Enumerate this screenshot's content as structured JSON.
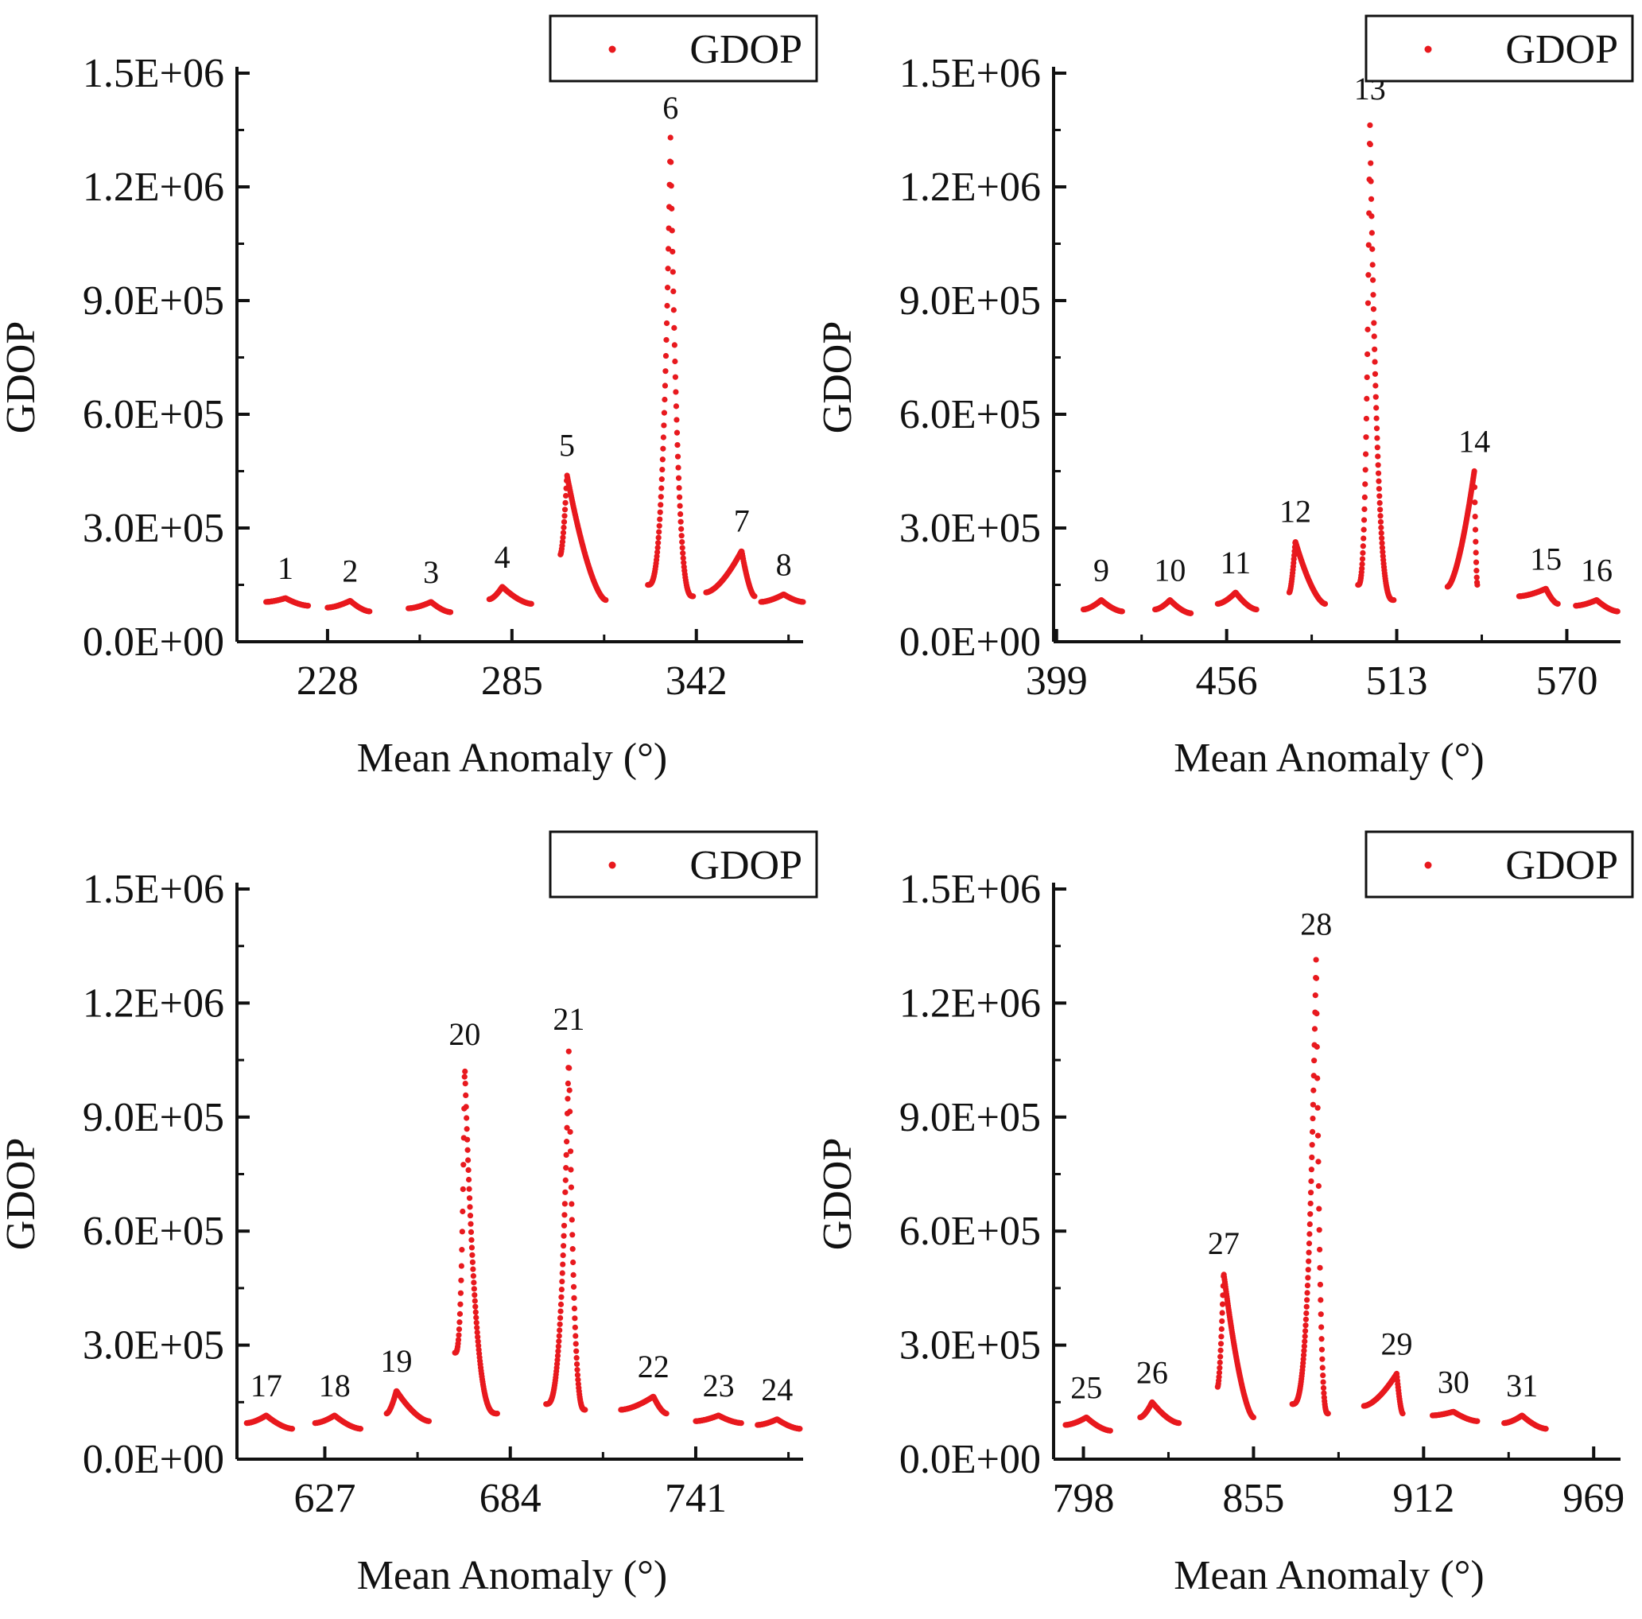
{
  "colors": {
    "series": "#e8191e",
    "axis": "#111111",
    "legend_border": "#111111",
    "background": "#ffffff"
  },
  "chart_data": [
    {
      "type": "scatter",
      "panel": "top-left",
      "xlabel": "Mean Anomaly (°)",
      "ylabel": "GDOP",
      "xlim": [
        200,
        375
      ],
      "ylim": [
        0,
        1500000
      ],
      "xticks": [
        228,
        285,
        342
      ],
      "xtick_labels": [
        "228",
        "285",
        "342"
      ],
      "yticks": [
        0,
        300000,
        600000,
        900000,
        1200000,
        1500000
      ],
      "ytick_labels": [
        "0.0E+00",
        "3.0E+05",
        "6.0E+05",
        "9.0E+05",
        "1.2E+06",
        "1.5E+06"
      ],
      "legend": {
        "label": "GDOP",
        "position": "top-right",
        "marker": "dot"
      },
      "series": [
        {
          "name": "GDOP",
          "peaks": [
            {
              "label": "1",
              "x_start": 209,
              "x_end": 222,
              "x_peak": 215,
              "y_peak": 115000,
              "y_start": 105000,
              "y_end": 95000
            },
            {
              "label": "2",
              "x_start": 228,
              "x_end": 241,
              "x_peak": 235,
              "y_peak": 108000,
              "y_start": 90000,
              "y_end": 80000
            },
            {
              "label": "3",
              "x_start": 253,
              "x_end": 266,
              "x_peak": 260,
              "y_peak": 105000,
              "y_start": 88000,
              "y_end": 78000
            },
            {
              "label": "4",
              "x_start": 278,
              "x_end": 291,
              "x_peak": 282,
              "y_peak": 145000,
              "y_start": 112000,
              "y_end": 100000
            },
            {
              "label": "5",
              "x_start": 300,
              "x_end": 314,
              "x_peak": 302,
              "y_peak": 440000,
              "y_start": 230000,
              "y_end": 110000
            },
            {
              "label": "6",
              "x_start": 327,
              "x_end": 341,
              "x_peak": 334,
              "y_peak": 1330000,
              "y_start": 150000,
              "y_end": 120000
            },
            {
              "label": "7",
              "x_start": 345,
              "x_end": 360,
              "x_peak": 356,
              "y_peak": 240000,
              "y_start": 130000,
              "y_end": 120000
            },
            {
              "label": "8",
              "x_start": 362,
              "x_end": 375,
              "x_peak": 369,
              "y_peak": 125000,
              "y_start": 105000,
              "y_end": 105000
            }
          ]
        }
      ]
    },
    {
      "type": "scatter",
      "panel": "top-right",
      "xlabel": "Mean Anomaly (°)",
      "ylabel": "GDOP",
      "xlim": [
        398,
        588
      ],
      "ylim": [
        0,
        1500000
      ],
      "xticks": [
        399,
        456,
        513,
        570
      ],
      "xtick_labels": [
        "399",
        "456",
        "513",
        "570"
      ],
      "yticks": [
        0,
        300000,
        600000,
        900000,
        1200000,
        1500000
      ],
      "ytick_labels": [
        "0.0E+00",
        "3.0E+05",
        "6.0E+05",
        "9.0E+05",
        "1.2E+06",
        "1.5E+06"
      ],
      "legend": {
        "label": "GDOP",
        "position": "top-right",
        "marker": "dot"
      },
      "series": [
        {
          "name": "GDOP",
          "peaks": [
            {
              "label": "9",
              "x_start": 408,
              "x_end": 421,
              "x_peak": 414,
              "y_peak": 110000,
              "y_start": 85000,
              "y_end": 80000
            },
            {
              "label": "10",
              "x_start": 432,
              "x_end": 444,
              "x_peak": 437,
              "y_peak": 110000,
              "y_start": 85000,
              "y_end": 75000
            },
            {
              "label": "11",
              "x_start": 453,
              "x_end": 466,
              "x_peak": 459,
              "y_peak": 130000,
              "y_start": 100000,
              "y_end": 85000
            },
            {
              "label": "12",
              "x_start": 477,
              "x_end": 489,
              "x_peak": 479,
              "y_peak": 265000,
              "y_start": 130000,
              "y_end": 100000
            },
            {
              "label": "13",
              "x_start": 500,
              "x_end": 512,
              "x_peak": 504,
              "y_peak": 1380000,
              "y_start": 150000,
              "y_end": 110000
            },
            {
              "label": "14",
              "x_start": 530,
              "x_end": 540,
              "x_peak": 539,
              "y_peak": 450000,
              "y_start": 145000,
              "y_end": 150000
            },
            {
              "label": "15",
              "x_start": 554,
              "x_end": 567,
              "x_peak": 563,
              "y_peak": 140000,
              "y_start": 120000,
              "y_end": 100000
            },
            {
              "label": "16",
              "x_start": 573,
              "x_end": 587,
              "x_peak": 580,
              "y_peak": 110000,
              "y_start": 95000,
              "y_end": 80000
            }
          ]
        }
      ]
    },
    {
      "type": "scatter",
      "panel": "bottom-left",
      "xlabel": "Mean Anomaly (°)",
      "ylabel": "GDOP",
      "xlim": [
        600,
        774
      ],
      "ylim": [
        0,
        1500000
      ],
      "xticks": [
        627,
        684,
        741
      ],
      "xtick_labels": [
        "627",
        "684",
        "741"
      ],
      "yticks": [
        0,
        300000,
        600000,
        900000,
        1200000,
        1500000
      ],
      "ytick_labels": [
        "0.0E+00",
        "3.0E+05",
        "6.0E+05",
        "9.0E+05",
        "1.2E+06",
        "1.5E+06"
      ],
      "legend": {
        "label": "GDOP",
        "position": "top-right",
        "marker": "dot"
      },
      "series": [
        {
          "name": "GDOP",
          "peaks": [
            {
              "label": "17",
              "x_start": 603,
              "x_end": 617,
              "x_peak": 609,
              "y_peak": 115000,
              "y_start": 95000,
              "y_end": 80000
            },
            {
              "label": "18",
              "x_start": 624,
              "x_end": 638,
              "x_peak": 630,
              "y_peak": 115000,
              "y_start": 95000,
              "y_end": 80000
            },
            {
              "label": "19",
              "x_start": 646,
              "x_end": 659,
              "x_peak": 649,
              "y_peak": 180000,
              "y_start": 120000,
              "y_end": 100000
            },
            {
              "label": "20",
              "x_start": 667,
              "x_end": 680,
              "x_peak": 670,
              "y_peak": 1040000,
              "y_start": 280000,
              "y_end": 120000
            },
            {
              "label": "21",
              "x_start": 695,
              "x_end": 707,
              "x_peak": 702,
              "y_peak": 1080000,
              "y_start": 145000,
              "y_end": 130000
            },
            {
              "label": "22",
              "x_start": 718,
              "x_end": 732,
              "x_peak": 728,
              "y_peak": 165000,
              "y_start": 130000,
              "y_end": 120000
            },
            {
              "label": "23",
              "x_start": 741,
              "x_end": 755,
              "x_peak": 748,
              "y_peak": 115000,
              "y_start": 100000,
              "y_end": 95000
            },
            {
              "label": "24",
              "x_start": 760,
              "x_end": 773,
              "x_peak": 766,
              "y_peak": 105000,
              "y_start": 90000,
              "y_end": 80000
            }
          ]
        }
      ]
    },
    {
      "type": "scatter",
      "panel": "bottom-right",
      "xlabel": "Mean Anomaly (°)",
      "ylabel": "GDOP",
      "xlim": [
        788,
        978
      ],
      "ylim": [
        0,
        1500000
      ],
      "xticks": [
        798,
        855,
        912,
        969
      ],
      "xtick_labels": [
        "798",
        "855",
        "912",
        "969"
      ],
      "yticks": [
        0,
        300000,
        600000,
        900000,
        1200000,
        1500000
      ],
      "ytick_labels": [
        "0.0E+00",
        "3.0E+05",
        "6.0E+05",
        "9.0E+05",
        "1.2E+06",
        "1.5E+06"
      ],
      "legend": {
        "label": "GDOP",
        "position": "top-right",
        "marker": "dot"
      },
      "series": [
        {
          "name": "GDOP",
          "peaks": [
            {
              "label": "25",
              "x_start": 792,
              "x_end": 807,
              "x_peak": 799,
              "y_peak": 110000,
              "y_start": 90000,
              "y_end": 75000
            },
            {
              "label": "26",
              "x_start": 817,
              "x_end": 830,
              "x_peak": 821,
              "y_peak": 150000,
              "y_start": 110000,
              "y_end": 95000
            },
            {
              "label": "27",
              "x_start": 843,
              "x_end": 855,
              "x_peak": 845,
              "y_peak": 490000,
              "y_start": 190000,
              "y_end": 110000
            },
            {
              "label": "28",
              "x_start": 868,
              "x_end": 880,
              "x_peak": 876,
              "y_peak": 1330000,
              "y_start": 145000,
              "y_end": 120000
            },
            {
              "label": "29",
              "x_start": 892,
              "x_end": 905,
              "x_peak": 903,
              "y_peak": 225000,
              "y_start": 140000,
              "y_end": 120000
            },
            {
              "label": "30",
              "x_start": 915,
              "x_end": 930,
              "x_peak": 922,
              "y_peak": 125000,
              "y_start": 115000,
              "y_end": 100000
            },
            {
              "label": "31",
              "x_start": 939,
              "x_end": 953,
              "x_peak": 945,
              "y_peak": 115000,
              "y_start": 95000,
              "y_end": 80000
            }
          ]
        }
      ]
    }
  ]
}
